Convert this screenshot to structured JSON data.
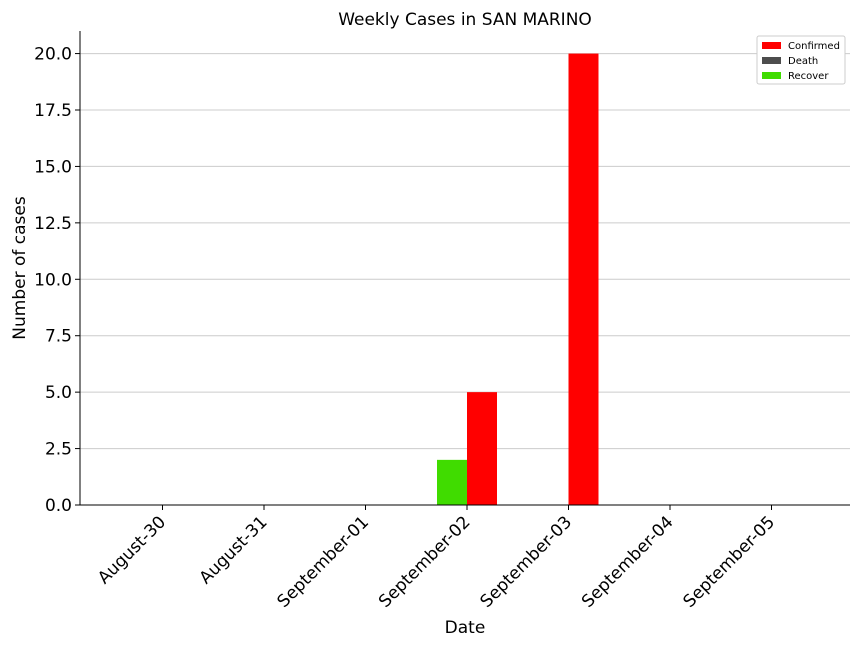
{
  "chart_data": {
    "type": "bar",
    "title": "Weekly Cases in SAN MARINO",
    "xlabel": "Date",
    "ylabel": "Number of cases",
    "categories": [
      "August-30",
      "August-31",
      "September-01",
      "September-02",
      "September-03",
      "September-04",
      "September-05"
    ],
    "series": [
      {
        "name": "Confirmed",
        "color": "#ff0000",
        "values": [
          0,
          0,
          0,
          5,
          20,
          0,
          0
        ]
      },
      {
        "name": "Death",
        "color": "#4d4d4d",
        "values": [
          0,
          0,
          0,
          0,
          0,
          0,
          0
        ]
      },
      {
        "name": "Recover",
        "color": "#40dc00",
        "values": [
          0,
          0,
          0,
          2,
          0,
          0,
          0
        ]
      }
    ],
    "ylim": [
      0,
      21
    ],
    "yticks": [
      "0.0",
      "2.5",
      "5.0",
      "7.5",
      "10.0",
      "12.5",
      "15.0",
      "17.5",
      "20.0"
    ],
    "grid": "horizontal",
    "legend_position": "top-right"
  }
}
